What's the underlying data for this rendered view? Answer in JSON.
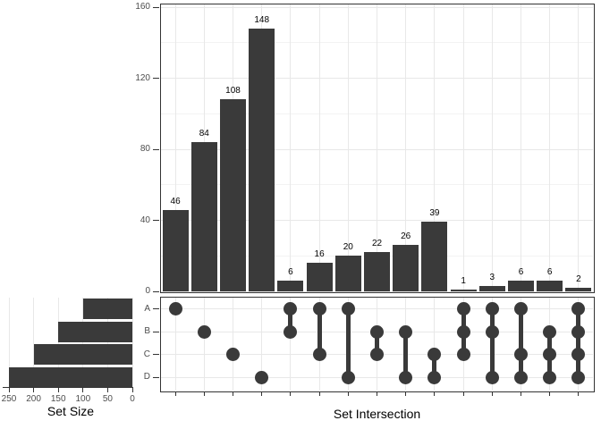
{
  "labels": {
    "set_size_title": "Set Size",
    "set_intersection_title": "Set Intersection"
  },
  "colors": {
    "bar_fill": "#3a3a3a",
    "dot_fill": "#3a3a3a",
    "panel_border": "#333333",
    "grid_major": "#e8e8e8",
    "grid_minor": "#f3f3f3",
    "tick_label": "#4d4d4d",
    "value_label": "#000000",
    "background": "#ffffff"
  },
  "chart_data": {
    "type": "bar",
    "subtype": "upset-plot",
    "title": "",
    "intersections": {
      "xlabel": "Set Intersection",
      "ylabel": "",
      "ylim": [
        0,
        160
      ],
      "yticks": [
        0,
        40,
        80,
        120,
        160
      ],
      "yticks_minor": [
        20,
        60,
        100,
        140
      ],
      "grid": true,
      "legend": false,
      "categories": [
        "A",
        "B",
        "C",
        "D",
        "A&B",
        "A&C",
        "A&D",
        "B&C",
        "B&D",
        "C&D",
        "A&B&C",
        "A&B&D",
        "A&C&D",
        "B&C&D",
        "A&B&C&D"
      ],
      "memberships": [
        [
          "A"
        ],
        [
          "B"
        ],
        [
          "C"
        ],
        [
          "D"
        ],
        [
          "A",
          "B"
        ],
        [
          "A",
          "C"
        ],
        [
          "A",
          "D"
        ],
        [
          "B",
          "C"
        ],
        [
          "B",
          "D"
        ],
        [
          "C",
          "D"
        ],
        [
          "A",
          "B",
          "C"
        ],
        [
          "A",
          "B",
          "D"
        ],
        [
          "A",
          "C",
          "D"
        ],
        [
          "B",
          "C",
          "D"
        ],
        [
          "A",
          "B",
          "C",
          "D"
        ]
      ],
      "values": [
        46,
        84,
        108,
        148,
        6,
        16,
        20,
        22,
        26,
        39,
        1,
        3,
        6,
        6,
        2
      ],
      "bar_value_labels": [
        "46",
        "84",
        "108",
        "148",
        "6",
        "16",
        "20",
        "22",
        "26",
        "39",
        "1",
        "3",
        "6",
        "6",
        "2"
      ]
    },
    "matrix_rows": [
      "A",
      "B",
      "C",
      "D"
    ],
    "set_sizes": {
      "xlabel": "Set Size",
      "sets": [
        "A",
        "B",
        "C",
        "D"
      ],
      "values": [
        100,
        150,
        200,
        250
      ],
      "xticks": [
        250,
        200,
        150,
        100,
        50,
        0
      ],
      "xlim": [
        250,
        0
      ],
      "axis_reversed": true
    }
  }
}
